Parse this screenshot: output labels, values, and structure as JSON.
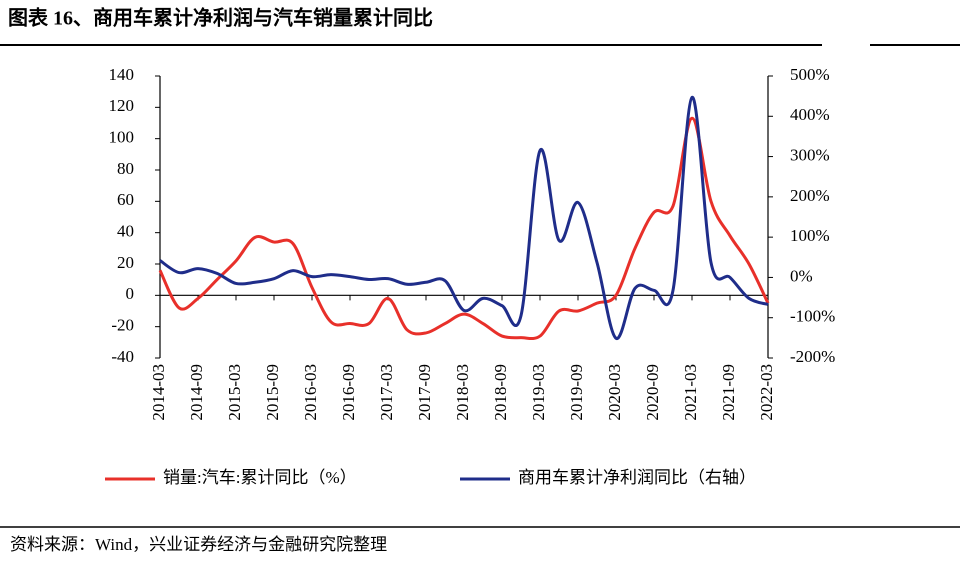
{
  "chart_data": {
    "type": "line",
    "title": "图表 16、商用车累计净利润与汽车销量累计同比",
    "source": "资料来源：Wind，兴业证券经济与金融研究院整理",
    "categories": [
      "2014-03",
      null,
      "2014-09",
      null,
      "2015-03",
      null,
      "2015-09",
      null,
      "2016-03",
      null,
      "2016-09",
      null,
      "2017-03",
      null,
      "2017-09",
      null,
      "2018-03",
      null,
      "2018-09",
      null,
      "2019-03",
      null,
      "2019-09",
      null,
      "2020-03",
      null,
      "2020-09",
      null,
      "2021-03",
      null,
      "2021-09",
      null,
      "2022-03"
    ],
    "ylim": [
      -40,
      140
    ],
    "yticks": [
      -40,
      -20,
      0,
      20,
      40,
      60,
      80,
      100,
      120,
      140
    ],
    "y2lim": [
      -200,
      500
    ],
    "y2ticks": [
      {
        "value": -200,
        "label": "-200%"
      },
      {
        "value": -100,
        "label": "-100%"
      },
      {
        "value": 0,
        "label": "0%"
      },
      {
        "value": 100,
        "label": "100%"
      },
      {
        "value": 200,
        "label": "200%"
      },
      {
        "value": 300,
        "label": "300%"
      },
      {
        "value": 400,
        "label": "400%"
      },
      {
        "value": 500,
        "label": "500%"
      }
    ],
    "legend": "bottom",
    "series": [
      {
        "name": "销量:汽车:累计同比（%）",
        "color": "#e8302a",
        "values": [
          16,
          -8,
          -2,
          10,
          22,
          37,
          34,
          33,
          5,
          -17,
          -18,
          -18,
          -2,
          -22,
          -24,
          -18,
          -12,
          -18,
          -26,
          -27,
          -26,
          -10,
          -10,
          -5,
          0,
          30,
          53,
          57,
          113,
          60,
          38,
          20,
          -5
        ]
      },
      {
        "name": "商用车累计净利润同比（右轴）",
        "color": "#1f2d8a",
        "axis": "y2",
        "values": [
          42,
          12,
          22,
          10,
          -15,
          -12,
          -3,
          17,
          2,
          7,
          2,
          -5,
          -3,
          -17,
          -12,
          -8,
          -82,
          -52,
          -70,
          -95,
          315,
          92,
          186,
          37,
          -151,
          -27,
          -32,
          -32,
          447,
          37,
          0,
          -52,
          -67
        ]
      }
    ]
  }
}
